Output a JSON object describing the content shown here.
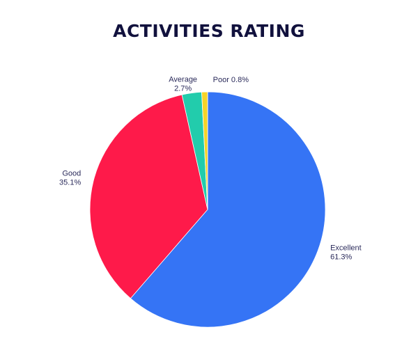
{
  "chart_data": {
    "type": "pie",
    "title": "ACTIVITIES RATING",
    "slices": [
      {
        "label": "Excellent",
        "value": 61.3,
        "display": "61.3%",
        "color": "#3574f5"
      },
      {
        "label": "Good",
        "value": 35.1,
        "display": "35.1%",
        "color": "#fe1a4a"
      },
      {
        "label": "Average",
        "value": 2.7,
        "display": "2.7%",
        "color": "#22ccac"
      },
      {
        "label": "Poor",
        "value": 0.8,
        "display": "0.8%",
        "color": "#f5d328"
      }
    ]
  }
}
